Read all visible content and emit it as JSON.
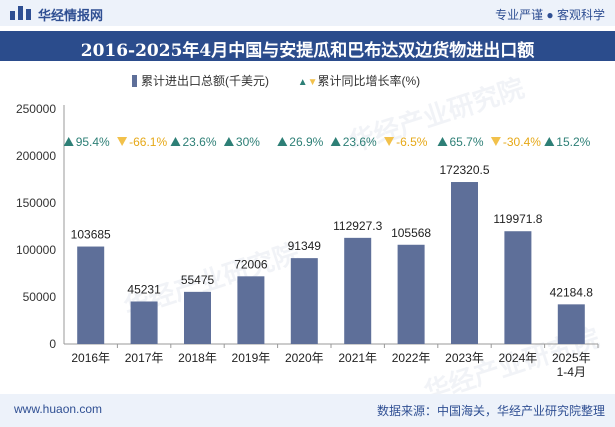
{
  "header": {
    "brand": "华经情报网",
    "slogan": "专业严谨 ● 客观科学",
    "logo_icon": "bar-logo-icon"
  },
  "footer": {
    "website": "www.huaon.com",
    "source": "数据来源：中国海关，华经产业研究院整理"
  },
  "watermark": "华经产业研究院",
  "colors": {
    "bar": "#5e6f99",
    "up": "#2d7f76",
    "down": "#f2c14b",
    "title_bg": "#2b4c8c"
  },
  "chart_data": {
    "type": "bar",
    "title": "2016-2025年4月中国与安提瓜和巴布达双边货物进出口额",
    "legend": {
      "series1": "累计进出口总额(千美元)",
      "series2": "累计同比增长率(%)"
    },
    "categories": [
      "2016年",
      "2017年",
      "2018年",
      "2019年",
      "2020年",
      "2021年",
      "2022年",
      "2023年",
      "2024年",
      "2025年"
    ],
    "category_sublabels": [
      "",
      "",
      "",
      "",
      "",
      "",
      "",
      "",
      "",
      "1-4月"
    ],
    "values": [
      103685,
      45231,
      55475,
      72006,
      91349,
      112927.3,
      105568,
      172320.5,
      119971.8,
      42184.8
    ],
    "value_labels": [
      "103685",
      "45231",
      "55475",
      "72006",
      "91349",
      "112927.3",
      "105568",
      "172320.5",
      "119971.8",
      "42184.8"
    ],
    "growth": [
      95.4,
      -66.1,
      23.6,
      30,
      26.9,
      23.6,
      -6.5,
      65.7,
      -30.4,
      15.2
    ],
    "growth_labels": [
      "95.4%",
      "-66.1%",
      "23.6%",
      "30%",
      "26.9%",
      "23.6%",
      "-6.5%",
      "65.7%",
      "-30.4%",
      "15.2%"
    ],
    "ylim": [
      0,
      250000
    ],
    "yticks": [
      0,
      50000,
      100000,
      150000,
      200000,
      250000
    ],
    "ytick_labels": [
      "0",
      "50000",
      "100000",
      "150000",
      "200000",
      "250000"
    ]
  }
}
